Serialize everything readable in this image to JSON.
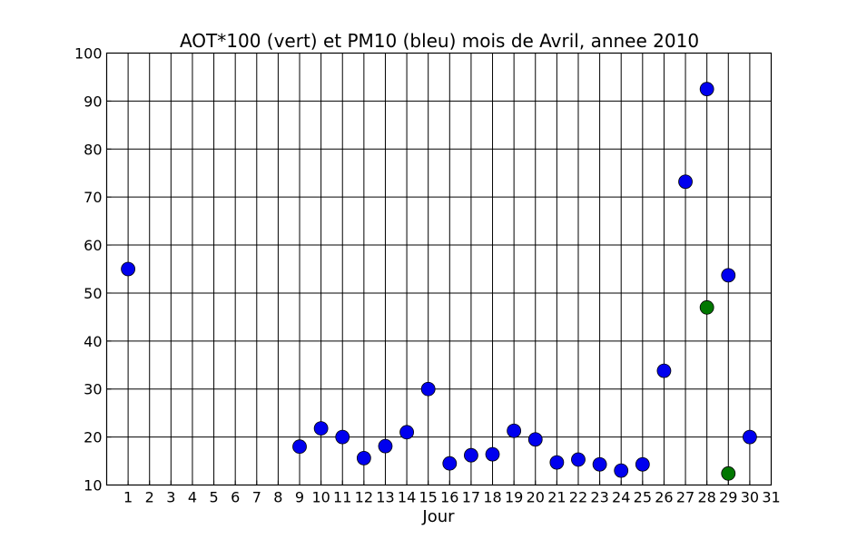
{
  "chart_data": {
    "type": "scatter",
    "title": "AOT*100 (vert) et PM10 (bleu) mois de Avril, annee 2010",
    "xlabel": "Jour",
    "ylabel": "",
    "xlim": [
      0,
      31
    ],
    "ylim": [
      10,
      100
    ],
    "x_ticks": [
      1,
      2,
      3,
      4,
      5,
      6,
      7,
      8,
      9,
      10,
      11,
      12,
      13,
      14,
      15,
      16,
      17,
      18,
      19,
      20,
      21,
      22,
      23,
      24,
      25,
      26,
      27,
      28,
      29,
      30,
      31
    ],
    "y_ticks": [
      10,
      20,
      30,
      40,
      50,
      60,
      70,
      80,
      90,
      100
    ],
    "grid": true,
    "series": [
      {
        "color": "#0000ee",
        "points": [
          {
            "x": 1,
            "y": 55
          },
          {
            "x": 9,
            "y": 18
          },
          {
            "x": 10,
            "y": 21.8
          },
          {
            "x": 11,
            "y": 20
          },
          {
            "x": 12,
            "y": 15.6
          },
          {
            "x": 13,
            "y": 18.1
          },
          {
            "x": 14,
            "y": 21
          },
          {
            "x": 15,
            "y": 30
          },
          {
            "x": 16,
            "y": 14.5
          },
          {
            "x": 17,
            "y": 16.2
          },
          {
            "x": 18,
            "y": 16.4
          },
          {
            "x": 19,
            "y": 21.3
          },
          {
            "x": 20,
            "y": 19.5
          },
          {
            "x": 21,
            "y": 14.7
          },
          {
            "x": 22,
            "y": 15.3
          },
          {
            "x": 23,
            "y": 14.3
          },
          {
            "x": 24,
            "y": 13
          },
          {
            "x": 25,
            "y": 14.3
          },
          {
            "x": 26,
            "y": 33.8
          },
          {
            "x": 27,
            "y": 73.2
          },
          {
            "x": 28,
            "y": 92.5
          },
          {
            "x": 29,
            "y": 53.7
          },
          {
            "x": 30,
            "y": 20
          }
        ]
      },
      {
        "color": "#007700",
        "points": [
          {
            "x": 28,
            "y": 47
          },
          {
            "x": 29,
            "y": 12.4
          }
        ]
      }
    ]
  }
}
